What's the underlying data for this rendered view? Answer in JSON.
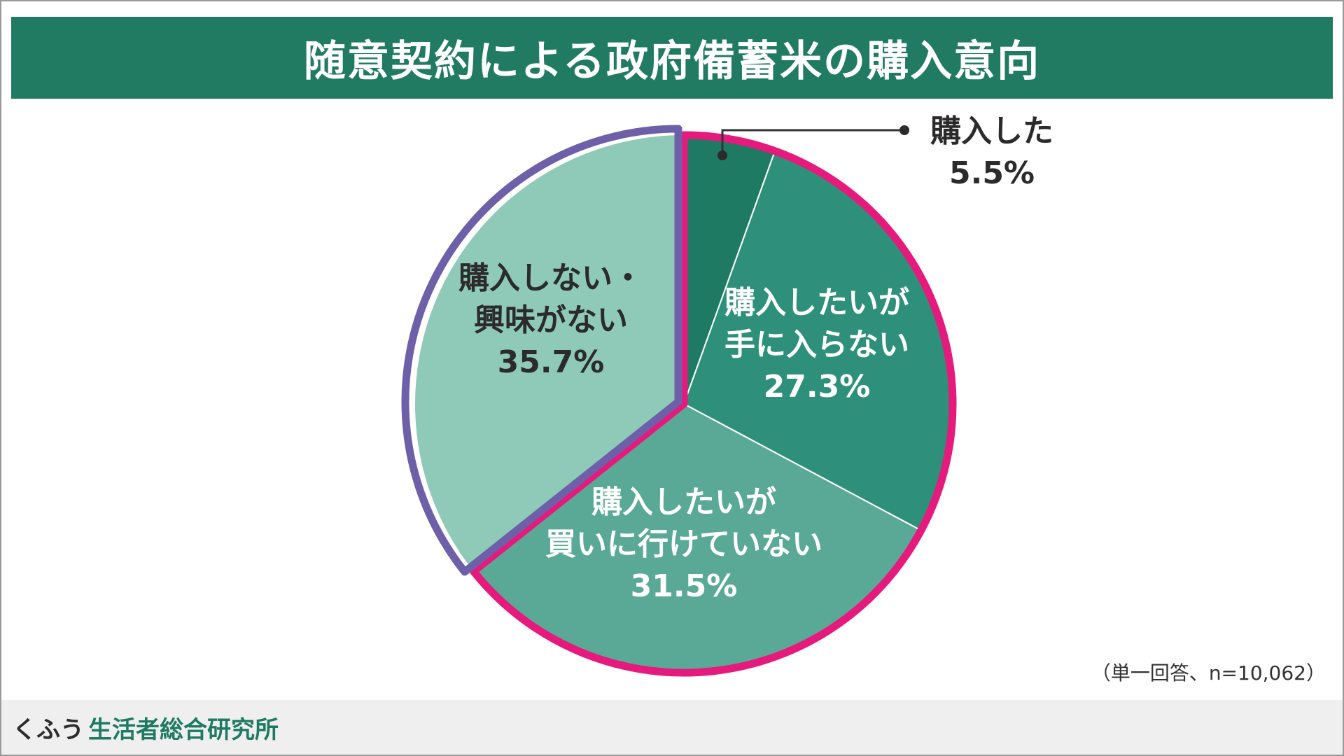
{
  "title": "随意契約による政府備蓄米の購入意向",
  "note": "（単一回答、n=10,062）",
  "footer": {
    "brand": "くふう",
    "org": "生活者総合研究所"
  },
  "colors": {
    "title_bg": "#217a62",
    "highlight_pink": "#e6197c",
    "highlight_purple": "#6e60a8"
  },
  "chart_data": {
    "type": "pie",
    "title": "随意契約による政府備蓄米の購入意向",
    "slices": [
      {
        "label_lines": [
          "購入した"
        ],
        "value_text": "5.5%",
        "value": 5.5,
        "color": "#1f7a63",
        "text_color": "#2b2b2b"
      },
      {
        "label_lines": [
          "購入したいが",
          "手に入らない"
        ],
        "value_text": "27.3%",
        "value": 27.3,
        "color": "#2e907a",
        "text_color": "#ffffff"
      },
      {
        "label_lines": [
          "購入したいが",
          "買いに行けていない"
        ],
        "value_text": "31.5%",
        "value": 31.5,
        "color": "#5aa997",
        "text_color": "#ffffff"
      },
      {
        "label_lines": [
          "購入しない・",
          "興味がない"
        ],
        "value_text": "35.7%",
        "value": 35.7,
        "color": "#8fcab9",
        "text_color": "#2b2b2b"
      }
    ],
    "start_angle": "12 o'clock, clockwise",
    "groups": [
      {
        "slices": [
          0,
          1,
          2
        ],
        "outline_color": "#e6197c"
      },
      {
        "slices": [
          3
        ],
        "outline_color": "#6e60a8"
      }
    ],
    "legend": "none"
  }
}
